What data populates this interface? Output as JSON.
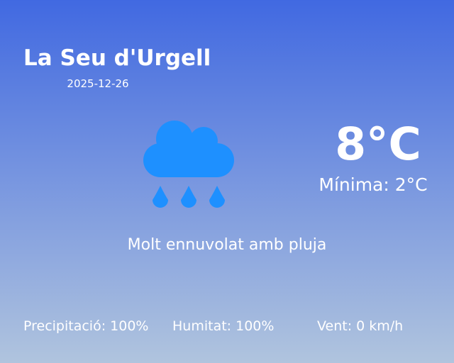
{
  "location": {
    "city": "La Seu d'Urgell",
    "date": "2025-12-26"
  },
  "current": {
    "temperature": "8°C",
    "minimum": "Mínima: 2°C",
    "description": "Molt ennuvolat amb pluja",
    "icon": "cloud-rain-icon",
    "icon_color": "#1E90FF"
  },
  "stats": {
    "precipitation": "Precipitació: 100%",
    "humidity": "Humitat: 100%",
    "wind": "Vent: 0 km/h"
  },
  "colors": {
    "gradient_top": "#4169E1",
    "gradient_bottom": "#B0C4DE",
    "text": "#FFFFFF"
  }
}
